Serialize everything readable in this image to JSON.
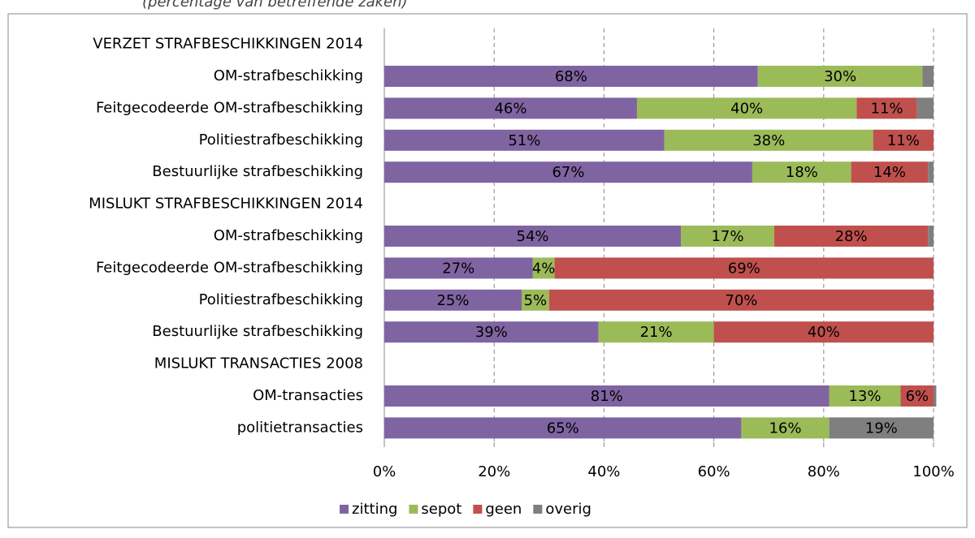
{
  "chart_data": {
    "type": "stacked-bar-horizontal",
    "title": "(percentage van betreffende zaken)",
    "categories": [
      "VERZET  STRAFBESCHIKKINGEN 2014",
      "OM-strafbeschikking",
      "Feitgecodeerde OM-strafbeschikking",
      "Politiestrafbeschikking",
      "Bestuurlijke strafbeschikking",
      "MISLUKT  STRAFBESCHIKKINGEN 2014",
      "OM-strafbeschikking",
      "Feitgecodeerde OM-strafbeschikking",
      "Politiestrafbeschikking",
      "Bestuurlijke strafbeschikking",
      "MISLUKT TRANSACTIES 2008",
      "OM-transacties",
      "politietransacties"
    ],
    "series": [
      {
        "name": "zitting",
        "color": "#8064a2",
        "label_color": "#ffffff",
        "values": [
          null,
          68,
          46,
          51,
          67,
          null,
          54,
          27,
          25,
          39,
          null,
          81,
          65
        ],
        "value_labels": [
          null,
          "68%",
          "46%",
          "51%",
          "67%",
          null,
          "54%",
          "27%",
          "25%",
          "39%",
          null,
          "81%",
          "65%"
        ]
      },
      {
        "name": "sepot",
        "color": "#9bbb59",
        "label_color": "#000000",
        "values": [
          null,
          30,
          40,
          38,
          18,
          null,
          17,
          4,
          5,
          21,
          null,
          13,
          16
        ],
        "value_labels": [
          null,
          "30%",
          "40%",
          "38%",
          "18%",
          null,
          "17%",
          "4%",
          "5%",
          "21%",
          null,
          "13%",
          "16%"
        ]
      },
      {
        "name": "geen",
        "color": "#c0504d",
        "label_color": "#ffffff",
        "values": [
          null,
          0,
          11,
          11,
          14,
          null,
          28,
          69,
          70,
          40,
          null,
          6,
          0
        ],
        "value_labels": [
          null,
          null,
          "11%",
          "11%",
          "14%",
          null,
          "28%",
          "69%",
          "70%",
          "40%",
          null,
          "6%",
          null
        ]
      },
      {
        "name": "overig",
        "color": "#7f7f7f",
        "label_color": "#000000",
        "values": [
          null,
          2,
          3,
          0,
          1,
          null,
          1,
          0,
          0,
          0,
          null,
          0.5,
          19
        ],
        "value_labels": [
          null,
          null,
          null,
          null,
          null,
          null,
          null,
          null,
          null,
          null,
          null,
          null,
          "19%"
        ]
      }
    ],
    "xlim": [
      0,
      100
    ],
    "xticks": [
      {
        "value": 0,
        "label": "0%"
      },
      {
        "value": 20,
        "label": "20%"
      },
      {
        "value": 40,
        "label": "40%"
      },
      {
        "value": 60,
        "label": "60%"
      },
      {
        "value": 80,
        "label": "80%"
      },
      {
        "value": 100,
        "label": "100%"
      }
    ],
    "grid": true,
    "legend": "bottom"
  }
}
